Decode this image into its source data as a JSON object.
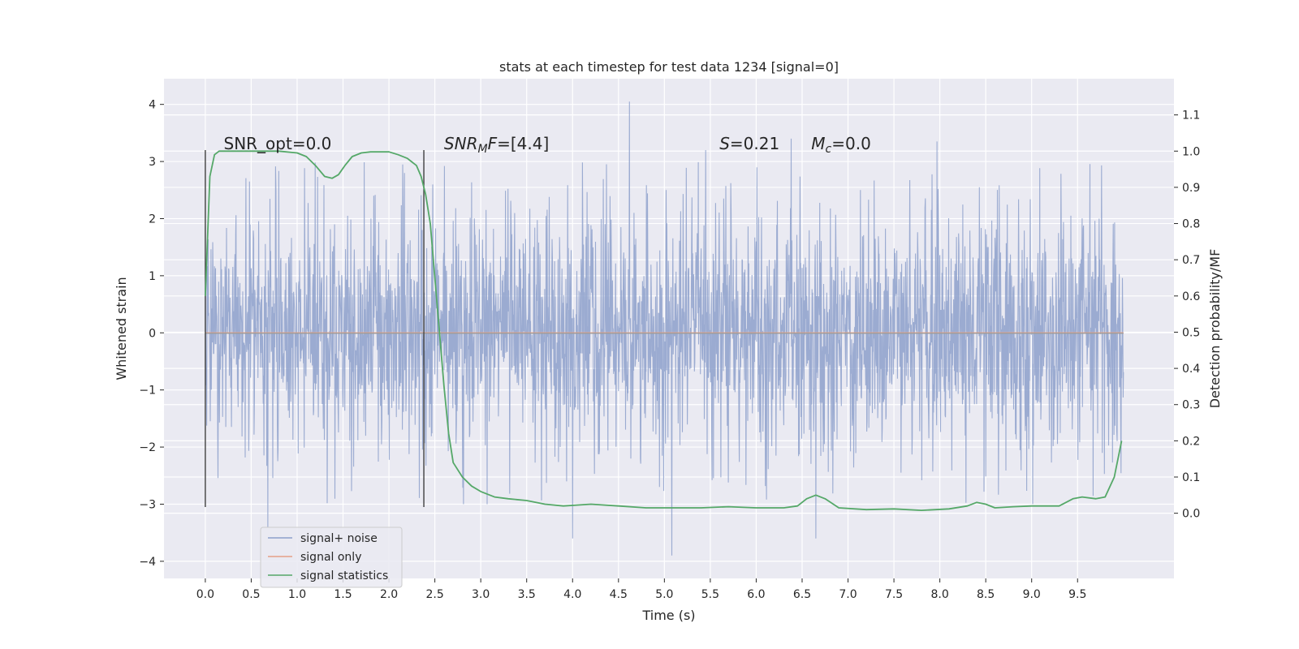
{
  "chart_data": {
    "type": "line",
    "title": "stats at each timestep for test data 1234 [signal=0]",
    "xlabel": "Time (s)",
    "ylabel": "Whitened strain",
    "ylabel_right": "Detection probability/MF",
    "xlim": [
      -0.45,
      10.55
    ],
    "ylim": [
      -4.3,
      4.45
    ],
    "ylim_right": [
      -0.18,
      1.2
    ],
    "x_ticks": [
      0.0,
      0.5,
      1.0,
      1.5,
      2.0,
      2.5,
      3.0,
      3.5,
      4.0,
      4.5,
      5.0,
      5.5,
      6.0,
      6.5,
      7.0,
      7.5,
      8.0,
      8.5,
      9.0,
      9.5
    ],
    "x_tick_labels": [
      "0.0",
      "0.5",
      "1.0",
      "1.5",
      "2.0",
      "2.5",
      "3.0",
      "3.5",
      "4.0",
      "4.5",
      "5.0",
      "5.5",
      "6.0",
      "6.5",
      "7.0",
      "7.5",
      "8.0",
      "8.5",
      "9.0",
      "9.5"
    ],
    "y_ticks": [
      4,
      3,
      2,
      1,
      0,
      -1,
      -2,
      -3,
      -4
    ],
    "y_tick_labels": [
      "4",
      "3",
      "2",
      "1",
      "0",
      "−1",
      "−2",
      "−3",
      "−4"
    ],
    "y_right_ticks": [
      1.1,
      1.0,
      0.9,
      0.8,
      0.7,
      0.6,
      0.5,
      0.4,
      0.3,
      0.2,
      0.1,
      0.0
    ],
    "y_right_tick_labels": [
      "1.1",
      "1.0",
      "0.9",
      "0.8",
      "0.7",
      "0.6",
      "0.5",
      "0.4",
      "0.3",
      "0.2",
      "0.1",
      "0.0"
    ],
    "grid": true,
    "legend_position": "lower-left",
    "legend": [
      "signal+ noise",
      "signal only",
      "signal statistics"
    ],
    "series": [
      {
        "name": "signal+ noise",
        "color": "#8da0cb",
        "x_range": [
          0.0,
          10.0
        ],
        "y_envelope_typical": [
          -1.8,
          1.9
        ],
        "y_extremes": [
          -3.9,
          4.05
        ],
        "notable_peaks": [
          [
            4.62,
            4.05
          ],
          [
            5.08,
            -3.9
          ],
          [
            6.38,
            3.4
          ],
          [
            6.65,
            -3.6
          ],
          [
            7.97,
            3.35
          ],
          [
            0.68,
            -3.4
          ],
          [
            4.0,
            -3.6
          ]
        ]
      },
      {
        "name": "signal only",
        "color": "#e5a088",
        "x": [
          0.0,
          10.0
        ],
        "y": [
          0.0,
          0.0
        ]
      },
      {
        "name": "signal statistics",
        "color": "#55a868",
        "axis": "right",
        "x": [
          0.0,
          0.05,
          0.1,
          0.15,
          0.25,
          0.5,
          0.8,
          1.0,
          1.1,
          1.2,
          1.3,
          1.38,
          1.45,
          1.52,
          1.6,
          1.7,
          1.8,
          2.0,
          2.1,
          2.2,
          2.3,
          2.35,
          2.4,
          2.45,
          2.5,
          2.55,
          2.6,
          2.65,
          2.7,
          2.8,
          2.9,
          3.0,
          3.15,
          3.3,
          3.5,
          3.7,
          3.9,
          4.2,
          4.5,
          4.8,
          5.1,
          5.4,
          5.7,
          6.0,
          6.3,
          6.45,
          6.55,
          6.65,
          6.75,
          6.9,
          7.2,
          7.5,
          7.8,
          8.1,
          8.3,
          8.4,
          8.5,
          8.6,
          8.8,
          9.0,
          9.3,
          9.45,
          9.55,
          9.7,
          9.8,
          9.9,
          9.98
        ],
        "y": [
          0.6,
          0.93,
          0.99,
          1.0,
          1.0,
          1.0,
          1.0,
          0.995,
          0.985,
          0.96,
          0.93,
          0.925,
          0.935,
          0.96,
          0.985,
          0.995,
          0.998,
          0.998,
          0.99,
          0.98,
          0.96,
          0.93,
          0.88,
          0.8,
          0.65,
          0.5,
          0.35,
          0.22,
          0.14,
          0.1,
          0.075,
          0.06,
          0.045,
          0.04,
          0.035,
          0.025,
          0.02,
          0.025,
          0.02,
          0.015,
          0.015,
          0.015,
          0.018,
          0.015,
          0.015,
          0.02,
          0.04,
          0.05,
          0.04,
          0.015,
          0.01,
          0.012,
          0.008,
          0.012,
          0.02,
          0.03,
          0.025,
          0.015,
          0.018,
          0.02,
          0.02,
          0.04,
          0.045,
          0.04,
          0.045,
          0.1,
          0.2
        ]
      }
    ],
    "vertical_lines": [
      0.0,
      2.38
    ],
    "annotations": [
      {
        "text": "SNR_opt=0.0",
        "x": 0.2
      },
      {
        "text": "SNR_MF=[4.4]",
        "x": 2.6
      },
      {
        "text": "S=0.21",
        "x": 5.6
      },
      {
        "text": "M_c=0.0",
        "x": 6.6
      }
    ]
  }
}
